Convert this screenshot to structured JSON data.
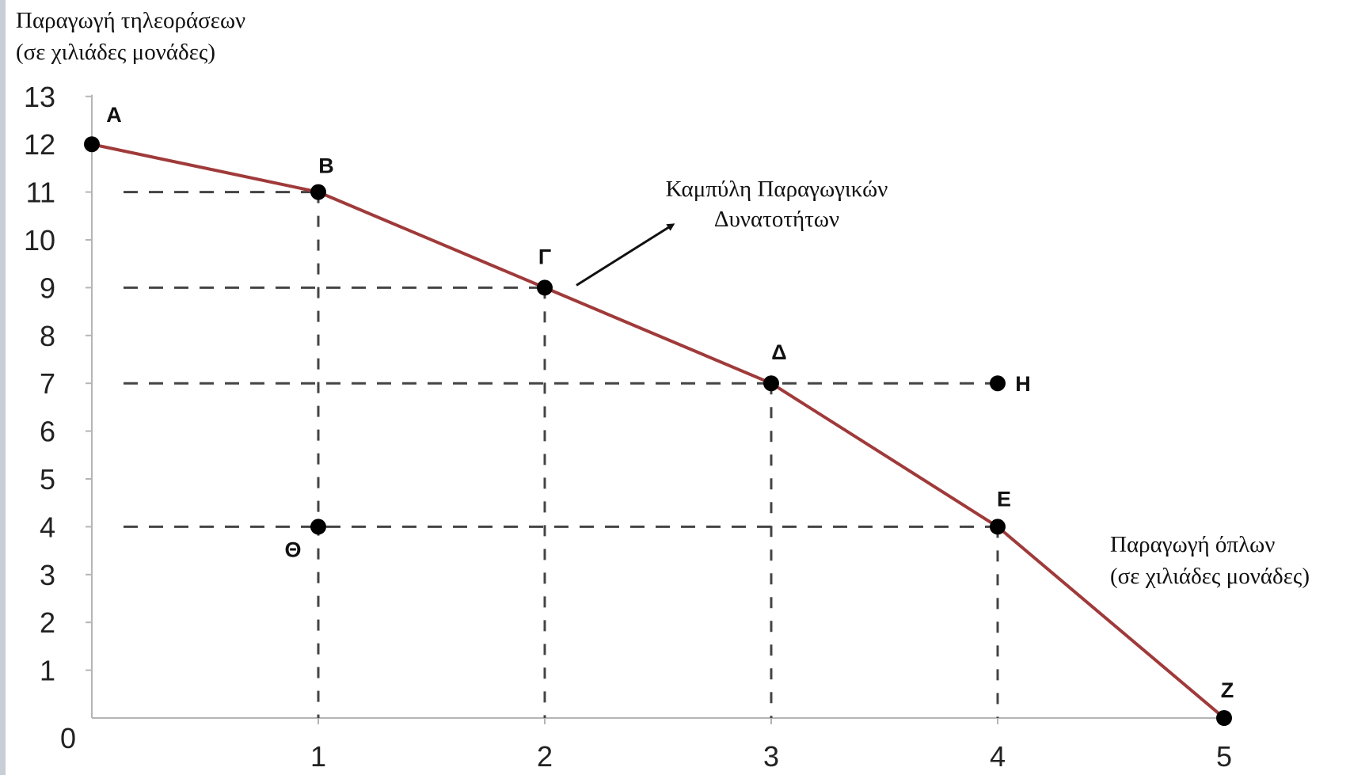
{
  "chart_data": {
    "type": "line",
    "ylabel_lines": [
      "Παραγωγή τηλεοράσεων",
      "(σε χιλιάδες μονάδες)"
    ],
    "xlabel_lines": [
      "Παραγωγή όπλων",
      "(σε χιλιάδες μονάδες)"
    ],
    "curve_label_lines": [
      "Καμπύλη Παραγωγικών",
      "Δυνατοτήτων"
    ],
    "origin_label": "0",
    "x_ticks": [
      "1",
      "2",
      "3",
      "4",
      "5"
    ],
    "y_ticks": [
      "1",
      "2",
      "3",
      "4",
      "5",
      "6",
      "7",
      "8",
      "9",
      "10",
      "11",
      "12",
      "13"
    ],
    "xlim": [
      0,
      5
    ],
    "ylim": [
      0,
      13
    ],
    "curve_color": "#a03a3a",
    "curve_points": [
      {
        "label": "Α",
        "x": 0,
        "y": 12
      },
      {
        "label": "Β",
        "x": 1,
        "y": 11
      },
      {
        "label": "Γ",
        "x": 2,
        "y": 9
      },
      {
        "label": "Δ",
        "x": 3,
        "y": 7
      },
      {
        "label": "Ε",
        "x": 4,
        "y": 4
      },
      {
        "label": "Ζ",
        "x": 5,
        "y": 0
      }
    ],
    "other_points": [
      {
        "label": "Η",
        "x": 4,
        "y": 7
      },
      {
        "label": "Θ",
        "x": 1,
        "y": 4
      }
    ]
  }
}
